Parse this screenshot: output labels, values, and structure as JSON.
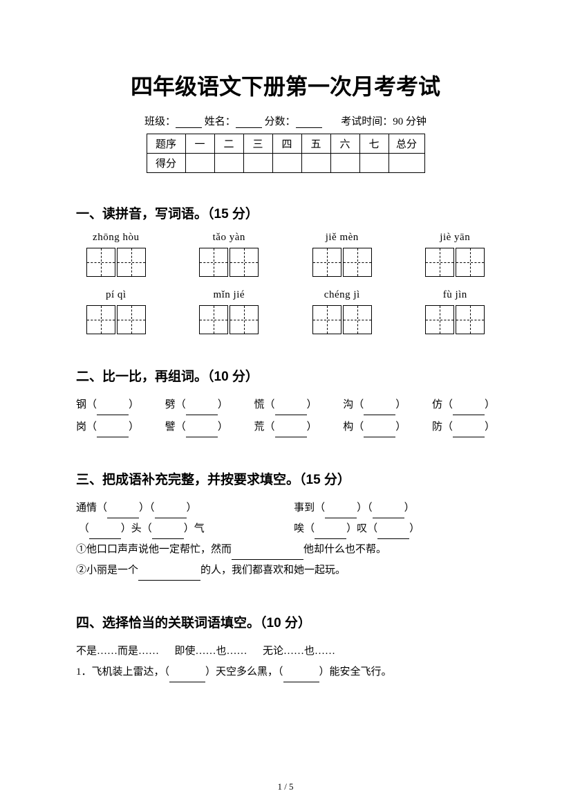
{
  "title": "四年级语文下册第一次月考考试",
  "info": {
    "class_label": "班级：",
    "name_label": "姓名：",
    "score_label": "分数：",
    "exam_time": "考试时间：90 分钟"
  },
  "score_table": {
    "row1_label": "题序",
    "row2_label": "得分",
    "cols": [
      "一",
      "二",
      "三",
      "四",
      "五",
      "六",
      "七"
    ],
    "total": "总分"
  },
  "sec1": {
    "head": "一、读拼音，写词语。（15 分）",
    "items": [
      "zhōng hòu",
      "tǎo yàn",
      "jiě mèn",
      "jiè yān",
      "pí  qì",
      "mǐn jié",
      "chéng jì",
      "fù jìn"
    ]
  },
  "sec2": {
    "head": "二、比一比，再组词。（10 分）",
    "rows": [
      [
        "钢",
        "劈",
        "慌",
        "沟",
        "仿"
      ],
      [
        "岗",
        "譬",
        "荒",
        "构",
        "防"
      ]
    ]
  },
  "sec3": {
    "head": "三、把成语补充完整，并按要求填空。（15 分）",
    "l1a": "通情（",
    "l1b": "）（",
    "l1c": "）",
    "r1a": "事到（",
    "r1b": "）（",
    "r1c": "）",
    "l2a": "（",
    "l2b": "）头（",
    "l2c": "）气",
    "r2a": "唉（",
    "r2b": "）叹（",
    "r2c": "）",
    "q1a": "①他口口声声说他一定帮忙，然而",
    "q1b": "他却什么也不帮。",
    "q2a": "②小丽是一个",
    "q2b": "的人，我们都喜欢和她一起玩。"
  },
  "sec4": {
    "head": "四、选择恰当的关联词语填空。（10 分）",
    "opts": "不是……而是……      即使……也……      无论……也……",
    "q1a": "1．飞机装上雷达，（",
    "q1b": "）天空多么黑，（",
    "q1c": "）能安全飞行。"
  },
  "pagenum": "1 / 5"
}
